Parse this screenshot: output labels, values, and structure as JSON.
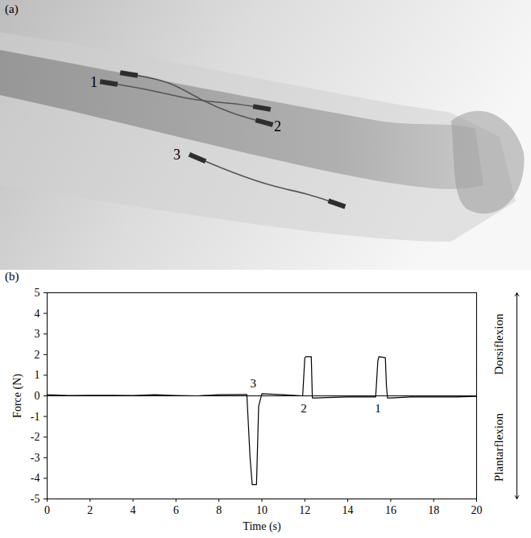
{
  "image_panel": {
    "panel_label": "(a)",
    "electrode_labels": [
      "1",
      "2",
      "3"
    ]
  },
  "chart_data": {
    "panel_label": "(b)",
    "type": "line",
    "x_label": "Time (s)",
    "y_label": "Force (N)",
    "x": [
      0,
      1,
      2,
      3,
      4,
      5,
      6,
      7,
      8,
      9,
      9.3,
      9.45,
      9.55,
      9.75,
      9.85,
      10.0,
      11,
      11.9,
      12.0,
      12.05,
      12.3,
      12.35,
      12.5,
      13,
      14,
      15,
      15.3,
      15.4,
      15.45,
      15.75,
      15.8,
      15.85,
      16,
      17,
      18,
      19,
      20
    ],
    "values": [
      0.05,
      0.02,
      0.03,
      0.03,
      0.02,
      0.05,
      0.02,
      0.0,
      0.05,
      0.06,
      0.06,
      -3.0,
      -4.3,
      -4.3,
      -0.5,
      0.1,
      0.05,
      0.0,
      1.85,
      1.9,
      1.9,
      -0.1,
      -0.1,
      -0.08,
      -0.05,
      -0.05,
      -0.05,
      1.7,
      1.9,
      1.85,
      0.5,
      -0.1,
      -0.1,
      -0.05,
      -0.05,
      -0.05,
      -0.02
    ],
    "color": "#000000",
    "xlim": [
      0,
      20
    ],
    "xticks": [
      0,
      2,
      4,
      6,
      8,
      10,
      12,
      14,
      16,
      18,
      20
    ],
    "ylim": [
      -5,
      5
    ],
    "yticks": [
      -5,
      -4,
      -3,
      -2,
      -1,
      0,
      1,
      2,
      3,
      4,
      5
    ],
    "grid": false,
    "annotations": [
      {
        "text": "3",
        "x": 9.6,
        "y": 0.6
      },
      {
        "text": "2",
        "x": 11.95,
        "y": -0.6
      },
      {
        "text": "1",
        "x": 15.4,
        "y": -0.6
      }
    ],
    "direction_labels": {
      "up": "Dorsiflexion",
      "down": "Plantarflexion"
    }
  }
}
